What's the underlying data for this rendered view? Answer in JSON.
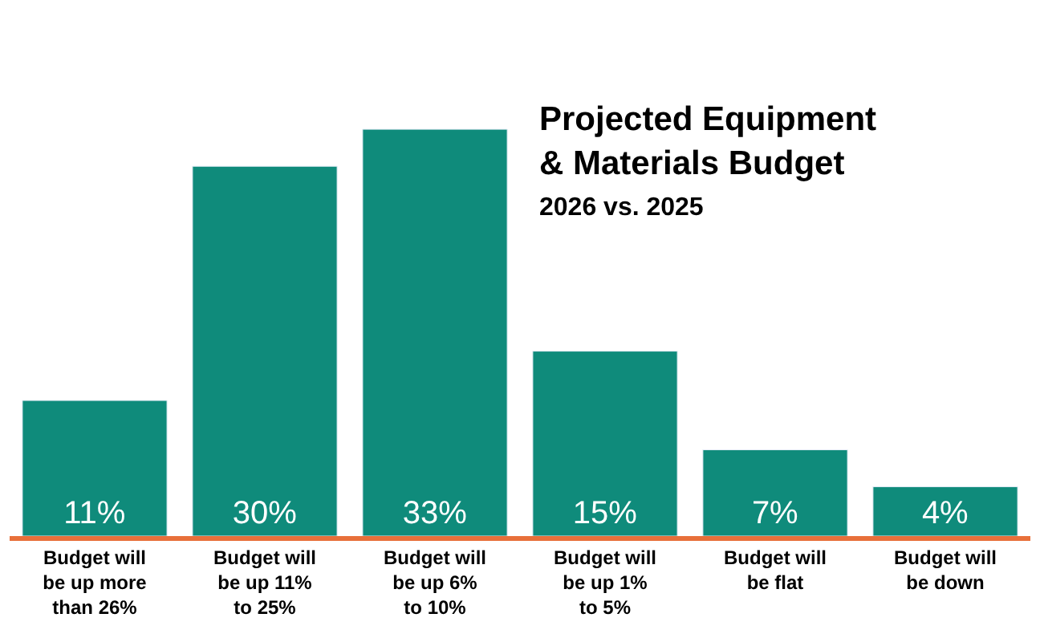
{
  "chart_data": {
    "type": "bar",
    "title": "Projected Equipment & Materials Budget",
    "subtitle": "2026 vs. 2025",
    "categories": [
      "Budget will be up more than 26%",
      "Budget will be up 11% to 25%",
      "Budget will be up 6% to 10%",
      "Budget will be up 1% to 5%",
      "Budget will be flat",
      "Budget will be down"
    ],
    "values": [
      11,
      30,
      33,
      15,
      7,
      4
    ],
    "value_labels": [
      "11%",
      "30%",
      "33%",
      "15%",
      "7%",
      "4%"
    ],
    "color": "#0f8b7b"
  }
}
